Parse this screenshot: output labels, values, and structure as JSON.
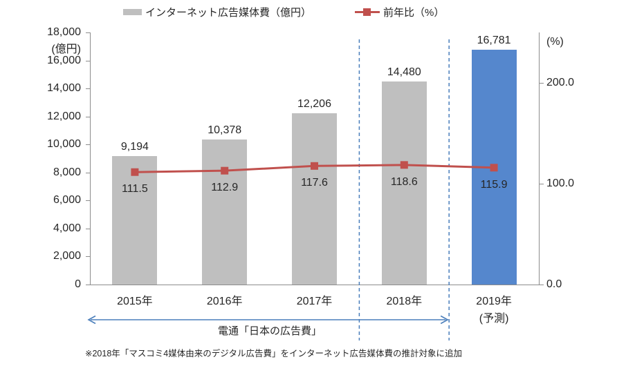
{
  "legend": {
    "bar_label": "インターネット広告媒体費（億円）",
    "line_label": "前年比（%）"
  },
  "chart_data": {
    "type": "combo-bar-line",
    "title": "",
    "categories": [
      "2015年",
      "2016年",
      "2017年",
      "2018年",
      "2019年"
    ],
    "category_sublabels": [
      "",
      "",
      "",
      "",
      "(予測)"
    ],
    "series": [
      {
        "name": "インターネット広告媒体費（億円）",
        "type": "bar",
        "axis": "left",
        "values": [
          9194,
          10378,
          12206,
          14480,
          16781
        ],
        "labels": [
          "9,194",
          "10,378",
          "12,206",
          "14,480",
          "16,781"
        ],
        "bar_colors": [
          "#BFBFBF",
          "#BFBFBF",
          "#BFBFBF",
          "#BFBFBF",
          "#5587CD"
        ]
      },
      {
        "name": "前年比（%）",
        "type": "line",
        "axis": "right",
        "values": [
          111.5,
          112.9,
          117.6,
          118.6,
          115.9
        ],
        "labels": [
          "111.5",
          "112.9",
          "117.6",
          "118.6",
          "115.9"
        ]
      }
    ],
    "left_axis": {
      "title": "(億円)",
      "min": 0,
      "max": 18000,
      "step": 2000,
      "tick_labels": [
        "0",
        "2,000",
        "4,000",
        "6,000",
        "8,000",
        "10,000",
        "12,000",
        "14,000",
        "16,000",
        "18,000"
      ]
    },
    "right_axis": {
      "title": "(%)",
      "min": 0,
      "max": 250,
      "tick_values": [
        0,
        100,
        200
      ],
      "tick_labels": [
        "0.0",
        "100.0",
        "200.0"
      ]
    },
    "dashed_category_boundaries": [
      3,
      4
    ],
    "annotations": {
      "source_arrow_label": "電通「日本の広告費」",
      "arrow_span_categories": [
        0,
        3
      ],
      "footnote": "※2018年「マスコミ4媒体由来のデジタル広告費」をインターネット広告媒体費の推計対象に追加"
    },
    "legend_position": "top",
    "grid": "off"
  },
  "colors": {
    "bar": "#BFBFBF",
    "bar_highlight": "#5587CD",
    "line": "#C0504D",
    "guide_blue": "#4A7EBB",
    "axis": "#8C8C8C",
    "text": "#262626"
  }
}
